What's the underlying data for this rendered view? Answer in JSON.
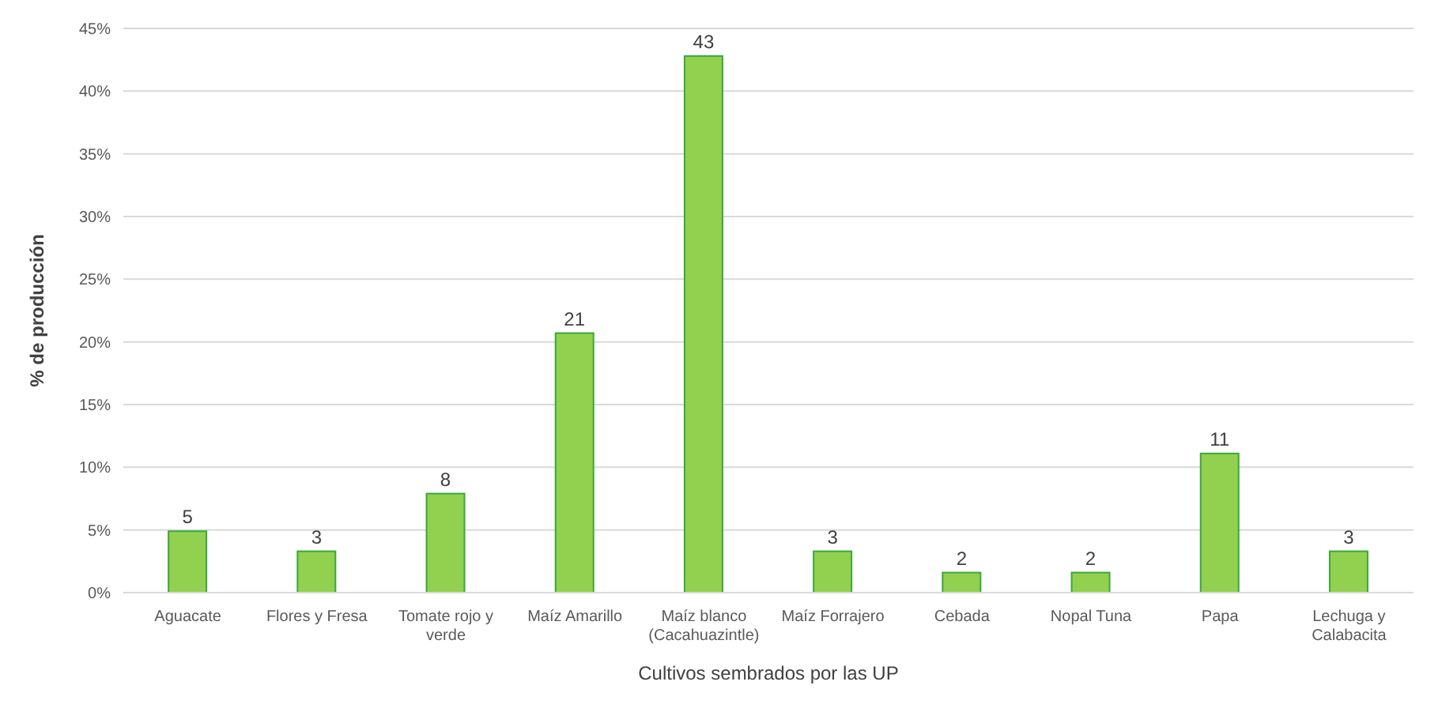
{
  "chart_data": {
    "type": "bar",
    "xlabel": "Cultivos sembrados por las UP",
    "ylabel": "% de producción",
    "categories": [
      "Aguacate",
      "Flores y Fresa",
      "Tomate rojo y verde",
      "Maíz Amarillo",
      "Maíz blanco (Cacahuazintle)",
      "Maíz Forrajero",
      "Cebada",
      "Nopal Tuna",
      "Papa",
      "Lechuga y Calabacita"
    ],
    "values": [
      4.9,
      3.3,
      7.9,
      20.7,
      42.8,
      3.3,
      1.6,
      1.6,
      11.1,
      3.3
    ],
    "value_labels": [
      "5",
      "3",
      "8",
      "21",
      "43",
      "3",
      "2",
      "2",
      "11",
      "3"
    ],
    "color": "#92d050",
    "ylim": [
      0,
      45
    ],
    "yticks": [
      {
        "value": 0,
        "label": "0%"
      },
      {
        "value": 5,
        "label": "5%"
      },
      {
        "value": 10,
        "label": "10%"
      },
      {
        "value": 15,
        "label": "15%"
      },
      {
        "value": 20,
        "label": "20%"
      },
      {
        "value": 25,
        "label": "25%"
      },
      {
        "value": 30,
        "label": "30%"
      },
      {
        "value": 35,
        "label": "35%"
      },
      {
        "value": 40,
        "label": "40%"
      },
      {
        "value": 45,
        "label": "45%"
      }
    ],
    "grid": "y"
  }
}
